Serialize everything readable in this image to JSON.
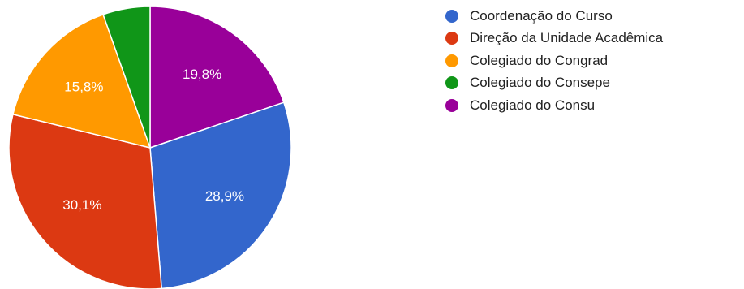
{
  "chart_data": {
    "type": "pie",
    "title": "",
    "legend_position": "right",
    "start_angle_deg": 0,
    "direction": "clockwise",
    "slices": [
      {
        "name": "Colegiado do Consu",
        "value": 19.8,
        "label": "19,8%",
        "color": "#990099"
      },
      {
        "name": "Coordenação do Curso",
        "value": 28.9,
        "label": "28,9%",
        "color": "#3366cc"
      },
      {
        "name": "Direção da Unidade Acadêmica",
        "value": 30.1,
        "label": "30,1%",
        "color": "#dc3912"
      },
      {
        "name": "Colegiado do Congrad",
        "value": 15.8,
        "label": "15,8%",
        "color": "#ff9900"
      },
      {
        "name": "Colegiado do Consepe",
        "value": 5.4,
        "label": "",
        "color": "#109618"
      }
    ],
    "legend": [
      {
        "name": "Coordenação do Curso",
        "color": "#3366cc"
      },
      {
        "name": "Direção da Unidade Acadêmica",
        "color": "#dc3912"
      },
      {
        "name": "Colegiado do Congrad",
        "color": "#ff9900"
      },
      {
        "name": "Colegiado do Consepe",
        "color": "#109618"
      },
      {
        "name": "Colegiado do Consu",
        "color": "#990099"
      }
    ]
  }
}
